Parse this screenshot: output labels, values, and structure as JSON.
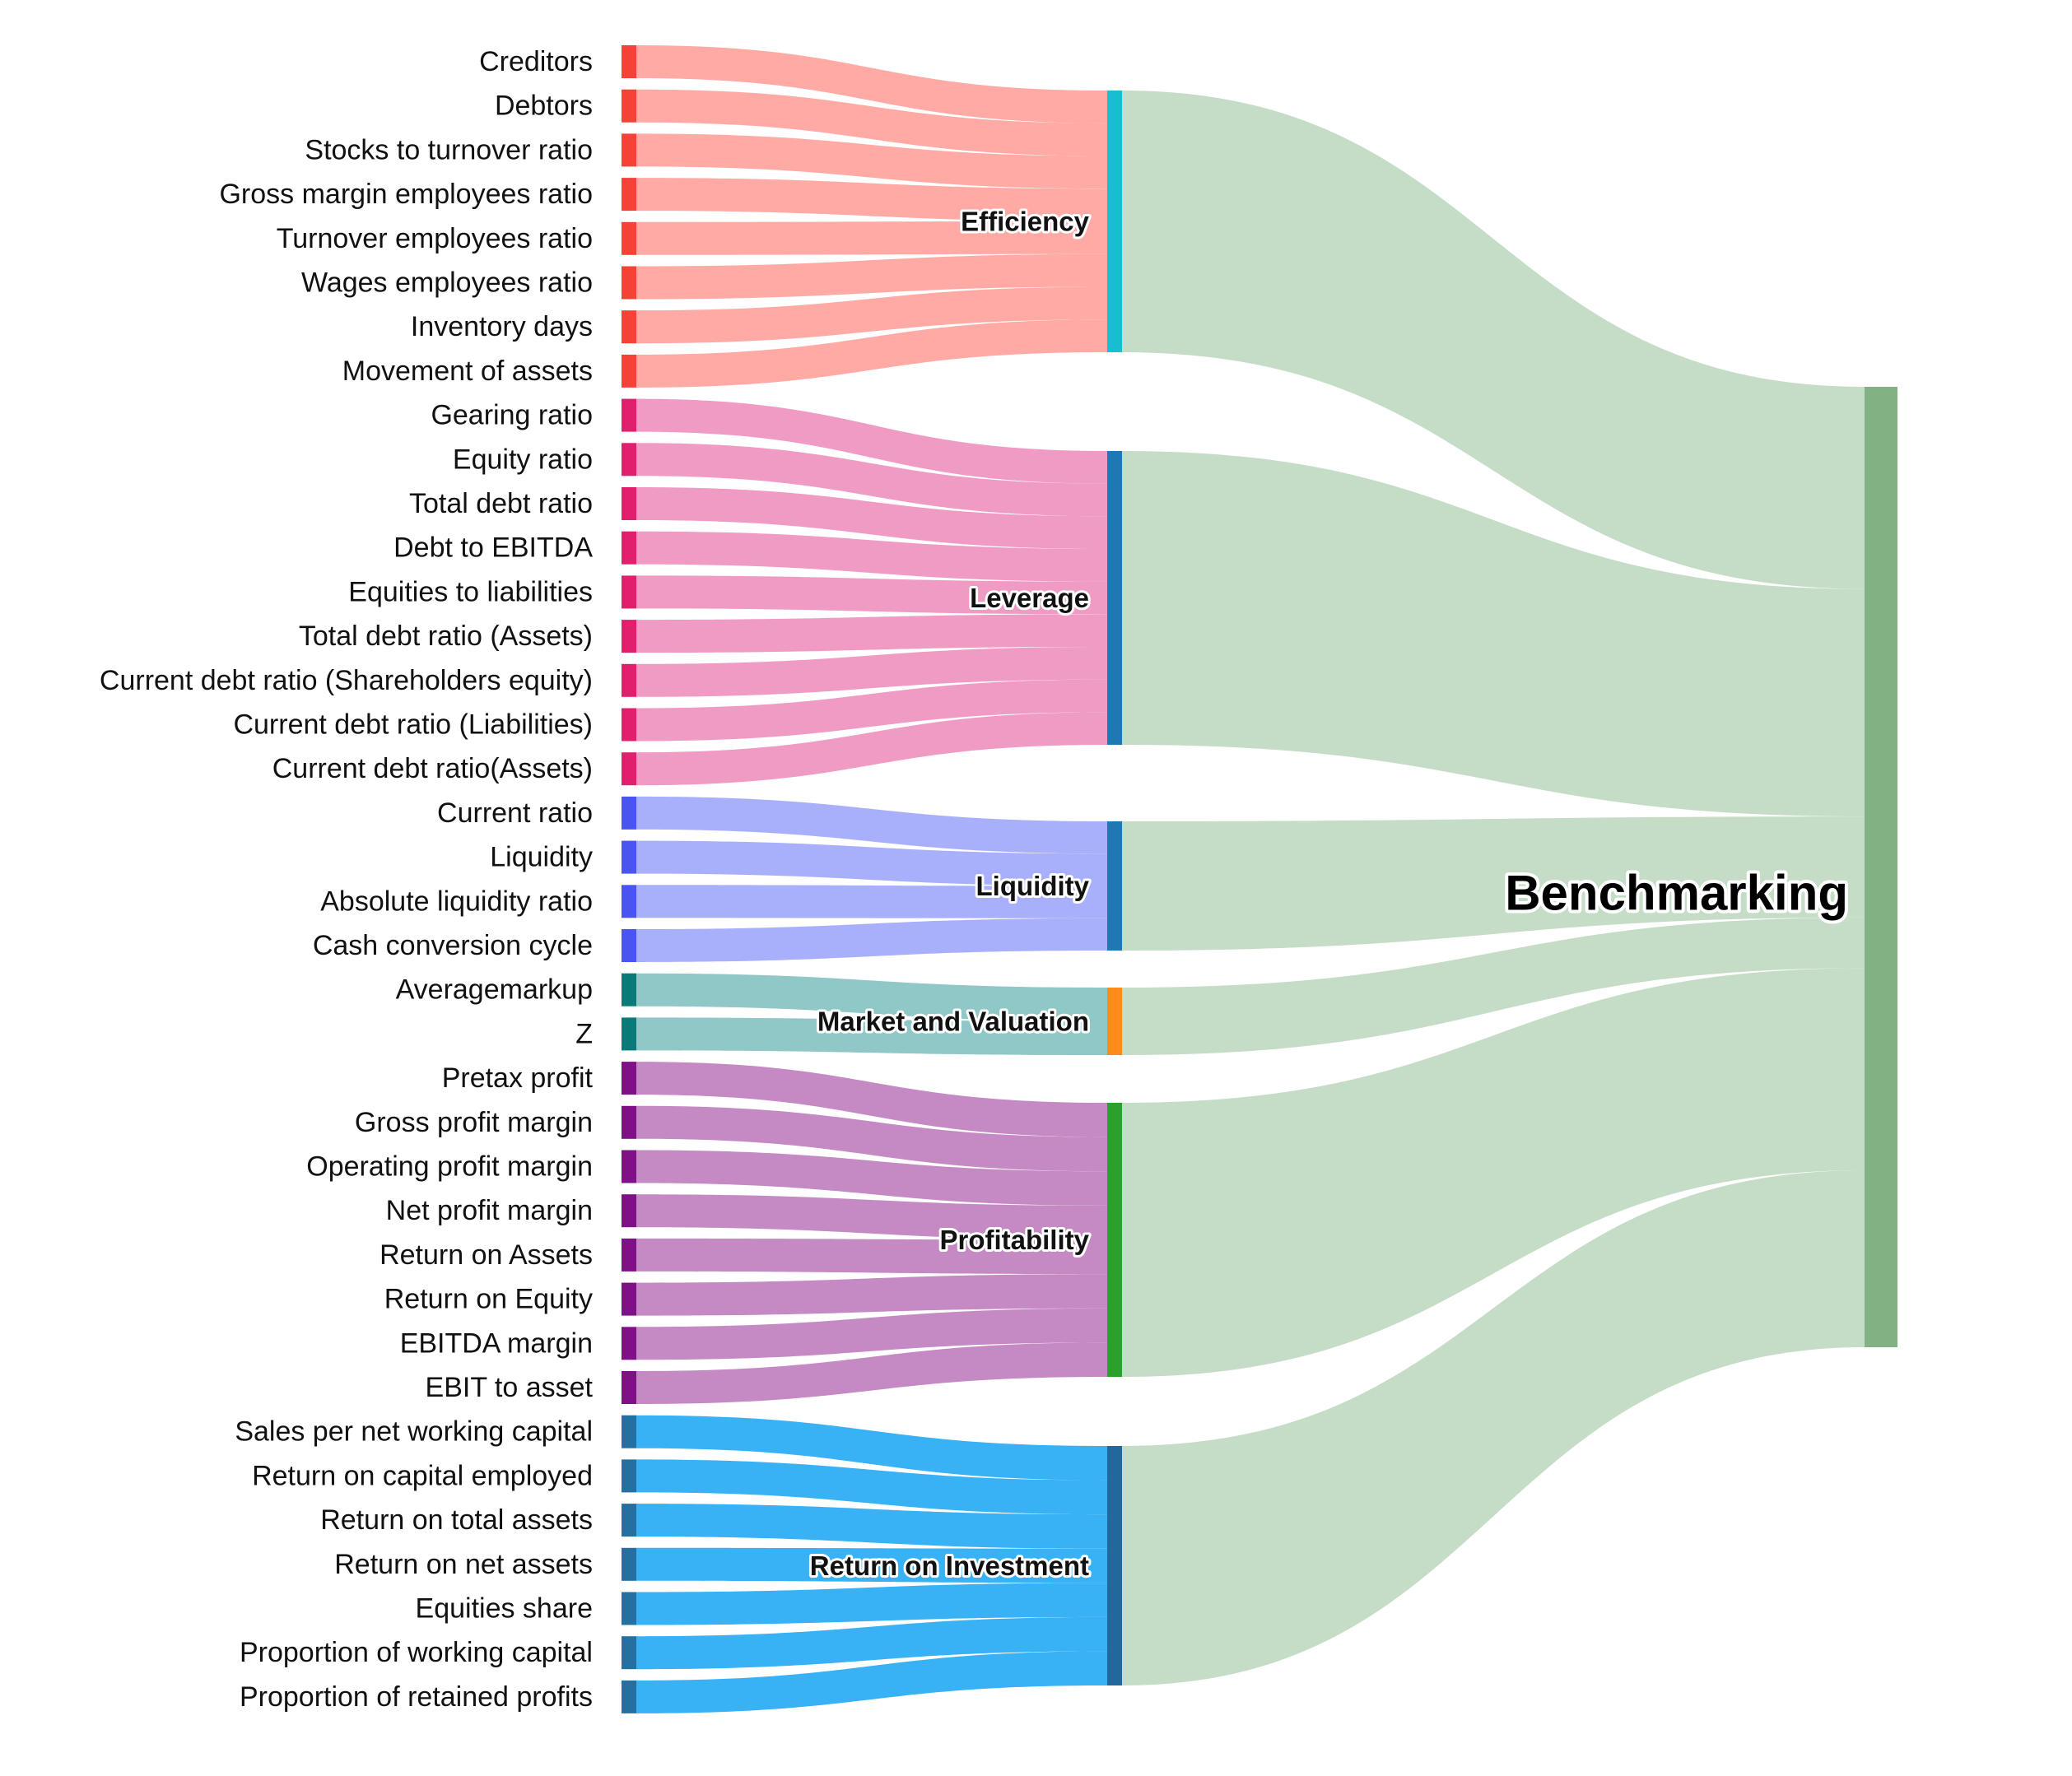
{
  "chart_data": {
    "type": "sankey",
    "root": {
      "name": "Benchmarking",
      "color": "#82b284",
      "link_color": "#c5dcc7"
    },
    "categories": [
      {
        "name": "Efficiency",
        "node_color": "#17becf",
        "link_color": "#ffaaa5",
        "source_color": "#f44336",
        "indicators": [
          "Creditors",
          "Debtors",
          "Stocks to turnover ratio",
          "Gross margin employees ratio",
          "Turnover employees ratio",
          "Wages employees ratio",
          "Inventory days",
          "Movement of assets"
        ]
      },
      {
        "name": "Leverage",
        "node_color": "#1f77b4",
        "link_color": "#f09bc4",
        "source_color": "#e0206d",
        "indicators": [
          "Gearing ratio",
          "Equity ratio",
          "Total debt ratio",
          "Debt to EBITDA",
          "Equities to liabilities",
          "Total debt ratio (Assets)",
          "Current debt ratio (Shareholders equity)",
          "Current debt ratio (Liabilities)",
          "Current debt ratio(Assets)"
        ]
      },
      {
        "name": "Liquidity",
        "node_color": "#1f77b4",
        "link_color": "#a8b0fb",
        "source_color": "#4a55f0",
        "indicators": [
          "Current ratio",
          "Liquidity",
          "Absolute liquidity ratio",
          "Cash conversion cycle"
        ]
      },
      {
        "name": "Market and Valuation",
        "node_color": "#ff8b1f",
        "link_color": "#90c8c8",
        "source_color": "#0a7a78",
        "indicators": [
          "Averagemarkup",
          "Z"
        ]
      },
      {
        "name": "Profitability",
        "node_color": "#2ca02c",
        "link_color": "#c58ac4",
        "source_color": "#801087",
        "indicators": [
          "Pretax profit",
          "Gross profit margin",
          "Operating profit margin",
          "Net profit margin",
          "Return on Assets",
          "Return on Equity",
          "EBITDA margin",
          "EBIT to asset"
        ]
      },
      {
        "name": "Return on Investment",
        "node_color": "#21699a",
        "link_color": "#39b1f5",
        "source_color": "#2470a0",
        "indicators": [
          "Sales per net working capital",
          "Return on capital employed",
          "Return on total assets",
          "Return on net assets",
          "Equities share",
          "Proportion of working capital",
          "Proportion of retained profits"
        ]
      }
    ]
  }
}
